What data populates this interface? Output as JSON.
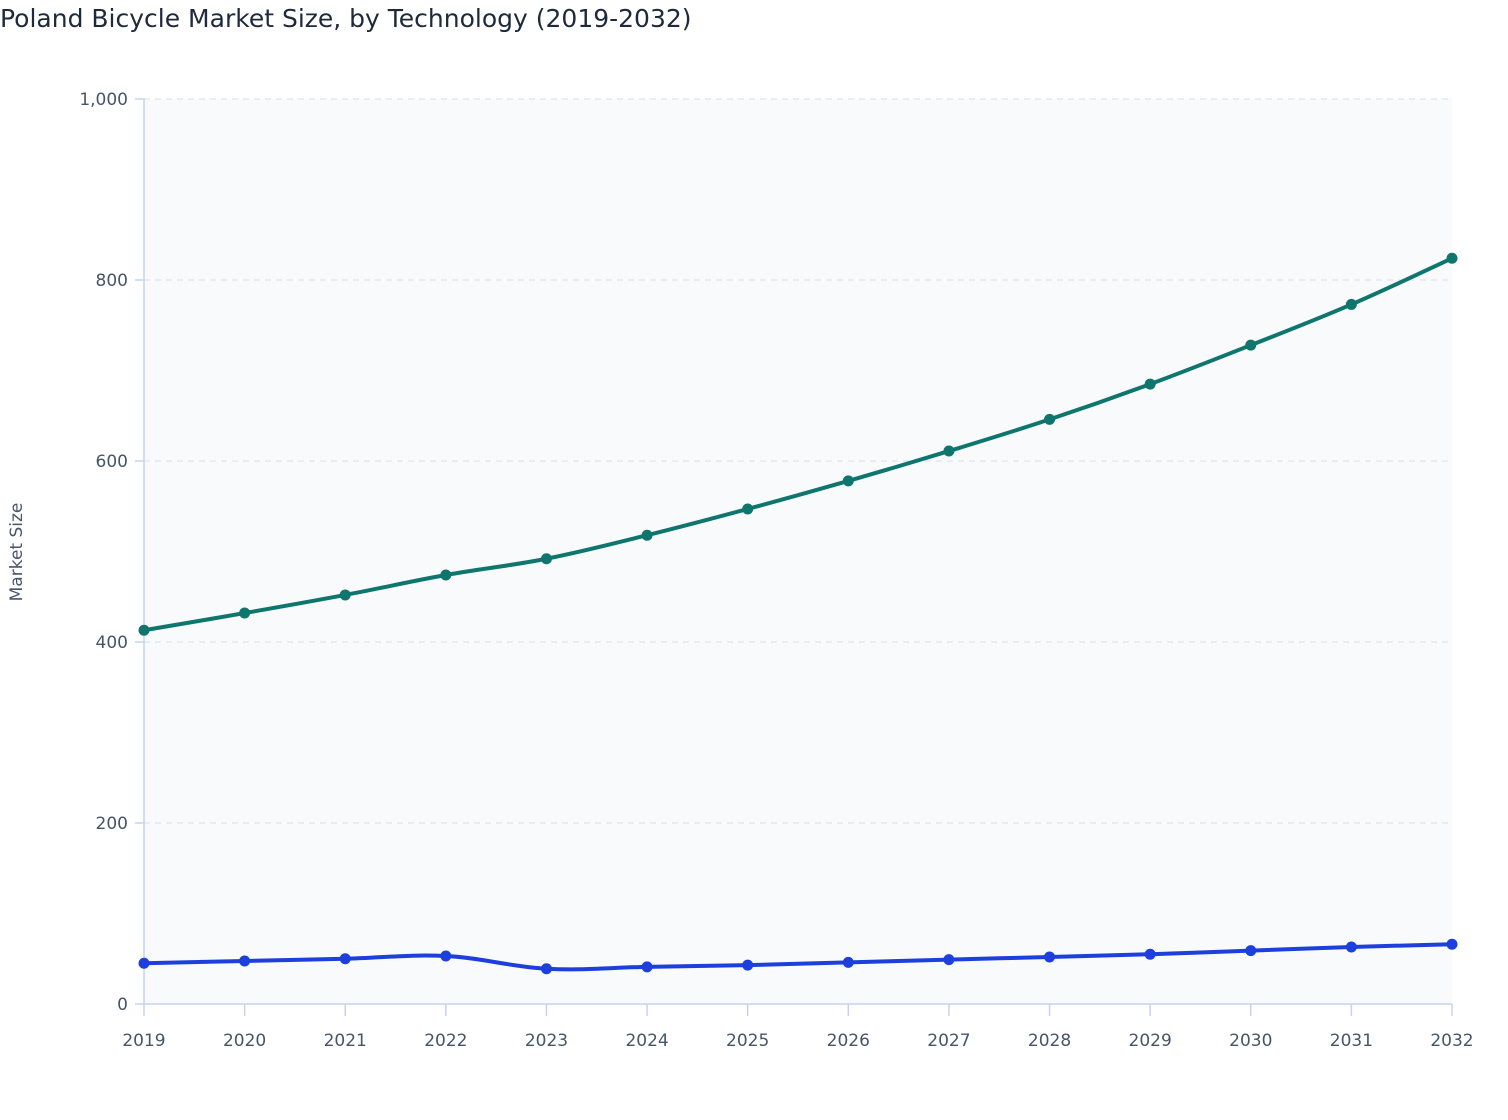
{
  "chart_data": {
    "type": "line",
    "title": "Poland Bicycle Market Size, by Technology (2019-2032)",
    "xlabel": "",
    "ylabel": "Market Size",
    "ylim": [
      0,
      1000
    ],
    "yticks": [
      0,
      200,
      400,
      600,
      800,
      1000
    ],
    "ytick_labels": [
      "0",
      "200",
      "400",
      "600",
      "800",
      "1,000"
    ],
    "grid": true,
    "legend": "none",
    "categories": [
      "2019",
      "2020",
      "2021",
      "2022",
      "2023",
      "2024",
      "2025",
      "2026",
      "2027",
      "2028",
      "2029",
      "2030",
      "2031",
      "2032"
    ],
    "series": [
      {
        "color": "#0f766e",
        "values": [
          413,
          432,
          452,
          474,
          492,
          518,
          547,
          578,
          611,
          646,
          685,
          728,
          773,
          824
        ]
      },
      {
        "color": "#1d3fdc",
        "values": [
          45,
          47.5,
          50,
          53,
          39,
          41,
          43,
          46,
          49,
          52,
          55,
          59,
          63,
          66
        ]
      }
    ],
    "colors": {
      "plot_bg": "#f8fafc",
      "axis": "#c7d2f0",
      "grid": "#e2e8f0"
    }
  }
}
